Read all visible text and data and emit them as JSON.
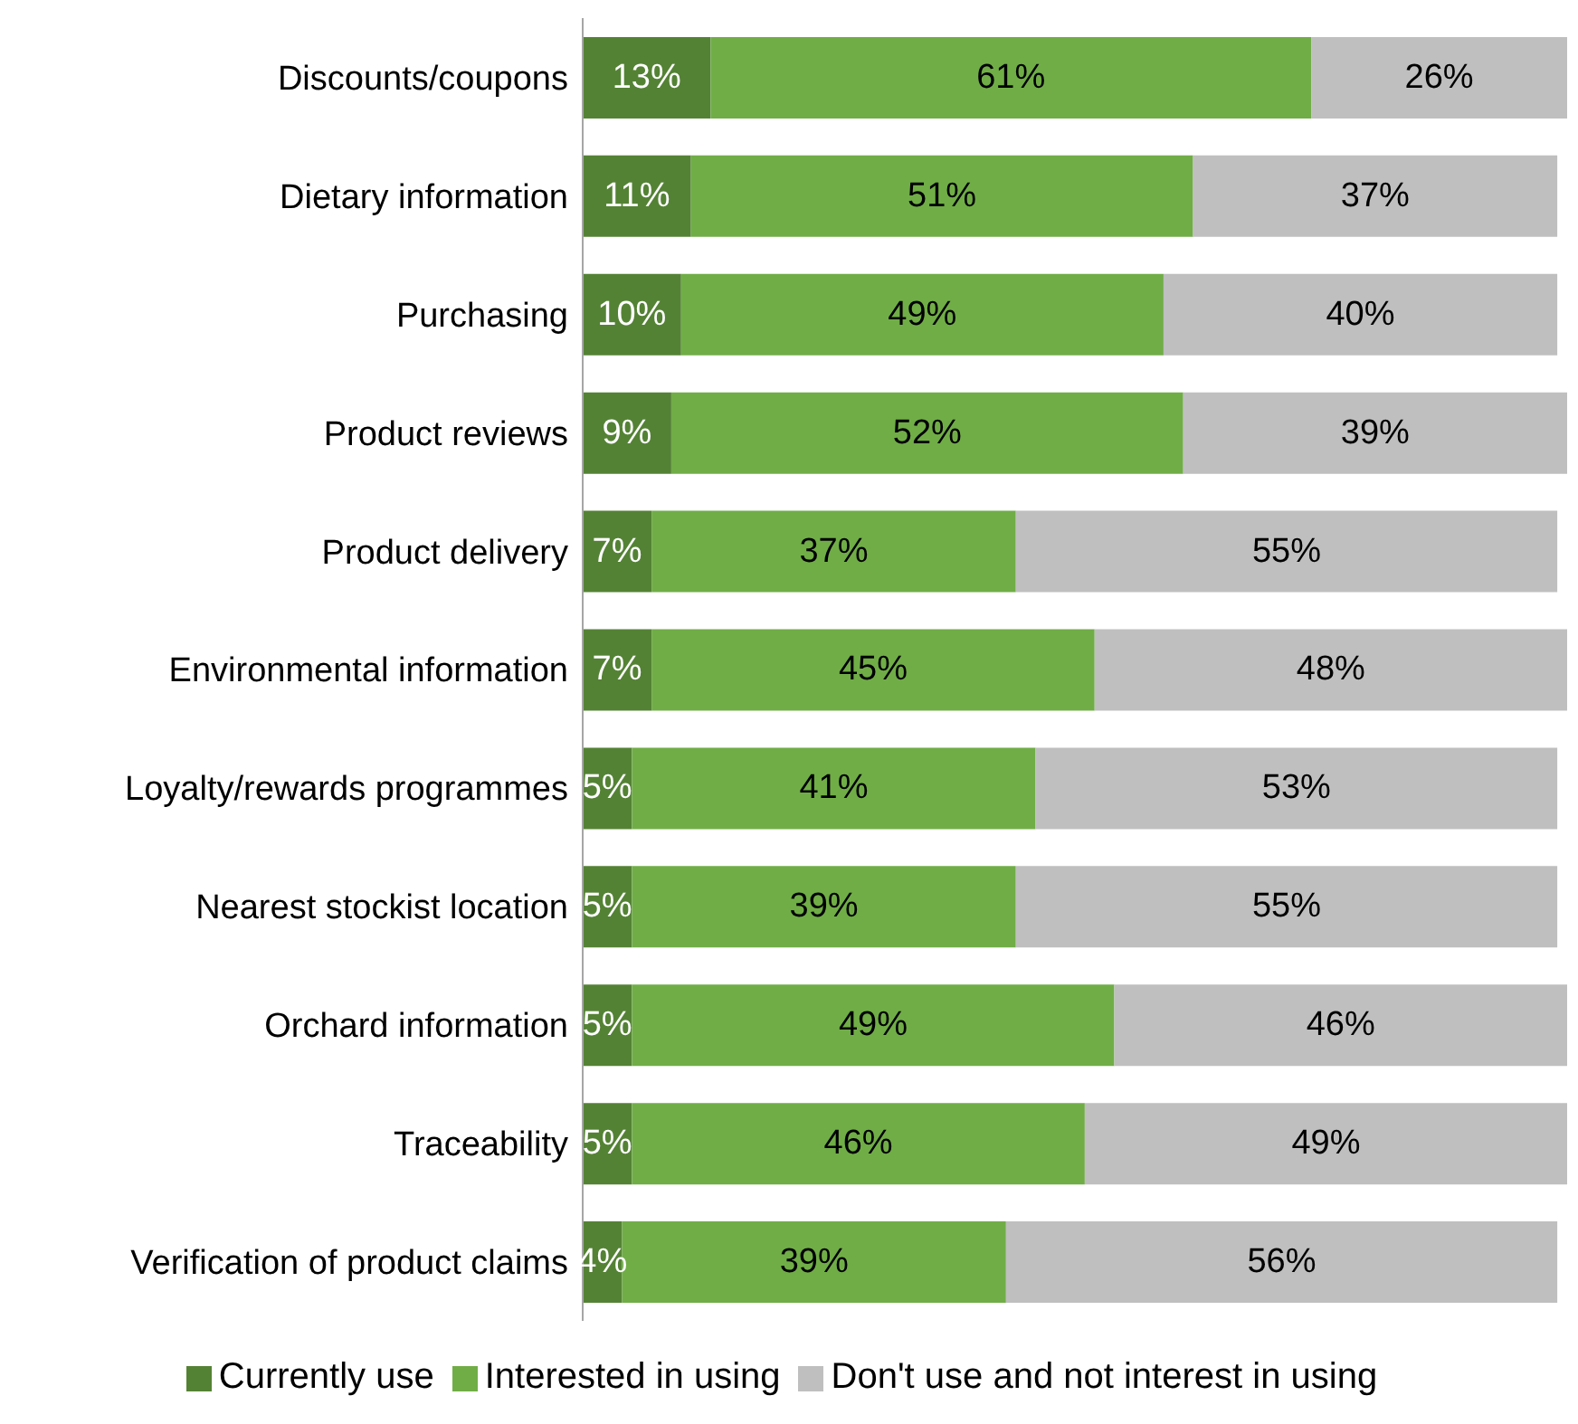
{
  "chart_data": {
    "type": "bar",
    "orientation": "horizontal",
    "stacked": true,
    "legend": "bottom",
    "grid": false,
    "categories": [
      "Discounts/coupons",
      "Dietary information",
      "Purchasing",
      "Product reviews",
      "Product delivery",
      "Environmental information",
      "Loyalty/rewards programmes",
      "Nearest stockist location",
      "Orchard information",
      "Traceability",
      "Verification of product claims"
    ],
    "series": [
      {
        "name": "Currently use",
        "color": "#548235",
        "values": [
          13,
          11,
          10,
          9,
          7,
          7,
          5,
          5,
          5,
          5,
          4
        ],
        "value_labels": [
          "13%",
          "11%",
          "10%",
          "9%",
          "7%",
          "7%",
          "5%",
          "5%",
          "5%",
          "5%",
          "4%"
        ]
      },
      {
        "name": "Interested in using",
        "color": "#70ad47",
        "values": [
          61,
          51,
          49,
          52,
          37,
          45,
          41,
          39,
          49,
          46,
          39
        ],
        "value_labels": [
          "61%",
          "51%",
          "49%",
          "52%",
          "37%",
          "45%",
          "41%",
          "39%",
          "49%",
          "46%",
          "39%"
        ]
      },
      {
        "name": "Don't use and not interest in using",
        "color": "#bfbfbf",
        "values": [
          26,
          37,
          40,
          39,
          55,
          48,
          53,
          55,
          46,
          49,
          56
        ],
        "value_labels": [
          "26%",
          "37%",
          "40%",
          "39%",
          "55%",
          "48%",
          "53%",
          "55%",
          "46%",
          "49%",
          "56%"
        ]
      }
    ]
  }
}
